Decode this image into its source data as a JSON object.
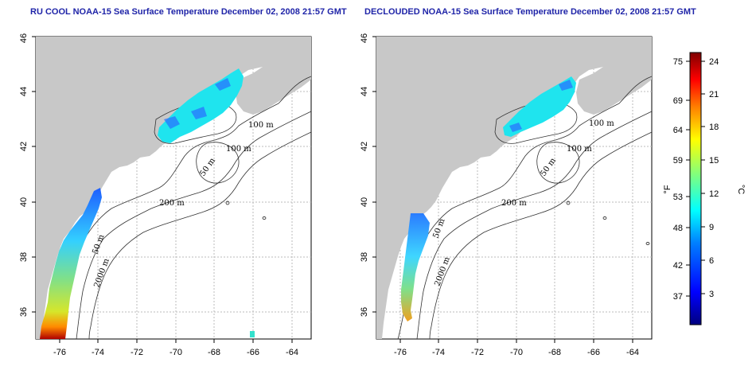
{
  "panels": [
    {
      "id": "left",
      "title": "RU COOL NOAA-15 Sea Surface Temperature December 02, 2008 21:57 GMT",
      "lat_ticks": [
        "36",
        "38",
        "40",
        "42",
        "44",
        "46"
      ],
      "lon_ticks": [
        "-76",
        "-74",
        "-72",
        "-70",
        "-68",
        "-66",
        "-64"
      ],
      "contour_labels": [
        "100 m",
        "100 m",
        "50 m",
        "200 m",
        "50 m",
        "2000 m"
      ]
    },
    {
      "id": "right",
      "title": "DECLOUDED NOAA-15 Sea Surface Temperature December 02, 2008 21:57 GMT",
      "lat_ticks": [
        "36",
        "38",
        "40",
        "42",
        "44",
        "46"
      ],
      "lon_ticks": [
        "-76",
        "-74",
        "-72",
        "-70",
        "-68",
        "-66",
        "-64"
      ],
      "contour_labels": [
        "100 m",
        "100 m",
        "50 m",
        "200 m",
        "50 m",
        "2000 m"
      ]
    }
  ],
  "colorbar": {
    "f_label": "°F",
    "c_label": "°C",
    "f_ticks": [
      "75",
      "69",
      "64",
      "59",
      "53",
      "48",
      "42",
      "37"
    ],
    "c_ticks": [
      "24",
      "21",
      "18",
      "15",
      "12",
      "9",
      "6",
      "3"
    ],
    "colors": [
      "#00007f",
      "#0000ff",
      "#007fff",
      "#00ffff",
      "#7fff7f",
      "#ffff00",
      "#ff7f00",
      "#ff0000",
      "#7f0000"
    ]
  },
  "colors": {
    "land": "#c8c8c8",
    "title": "#1f24a8",
    "sst_cold": "#19e6f0",
    "sst_mid": "#7ee08a",
    "sst_warm": "#ff6600"
  }
}
